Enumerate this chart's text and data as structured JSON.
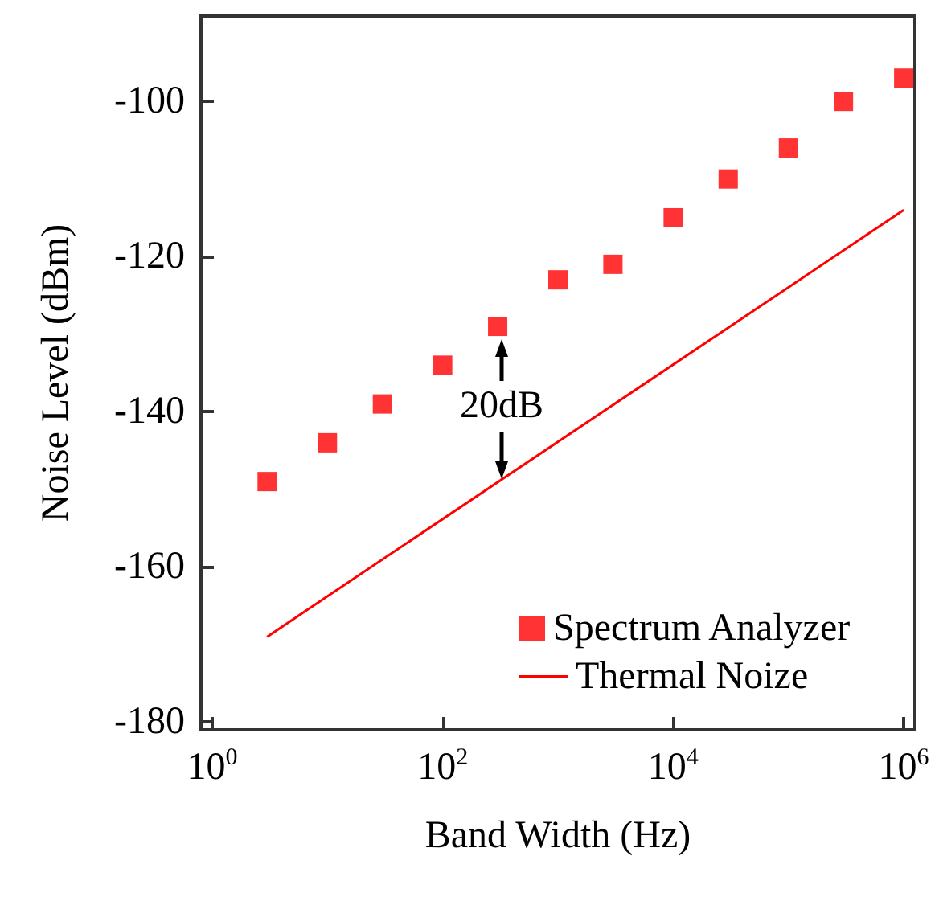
{
  "chart_data": {
    "type": "scatter",
    "xlabel": "Band Width (Hz)",
    "ylabel": "Noise Level (dBm)",
    "log": "x",
    "xlim": [
      0.8,
      1250000
    ],
    "xticks": [
      {
        "value": 1,
        "label": "10$^{0}$"
      },
      {
        "value": 100,
        "label": "10$^{2}$"
      },
      {
        "value": 10000,
        "label": "10$^{4}$"
      },
      {
        "value": 1000000,
        "label": "10$^{6}$"
      }
    ],
    "ylim": [
      -181,
      -89
    ],
    "yticks": [
      -180,
      -160,
      -140,
      -120,
      -100
    ],
    "grid": false,
    "legend": "bottom right",
    "series": [
      {
        "name": "Spectrum Analyzer",
        "marker": "square",
        "color": "#ff0000",
        "x": [
          3,
          10,
          30,
          100,
          300,
          1000,
          3000,
          10000,
          30000,
          100000,
          300000,
          1000000
        ],
        "values": [
          -149,
          -144,
          -139,
          -134,
          -129,
          -123,
          -121,
          -115,
          -110,
          -106,
          -100,
          -97
        ]
      },
      {
        "name": "Thermal Noize",
        "type": "line",
        "color": "#ff0000",
        "line_style": "solid",
        "x": [
          3,
          1000000
        ],
        "values": [
          -169,
          -114
        ]
      }
    ],
    "annotations": [
      "20dB"
    ]
  }
}
